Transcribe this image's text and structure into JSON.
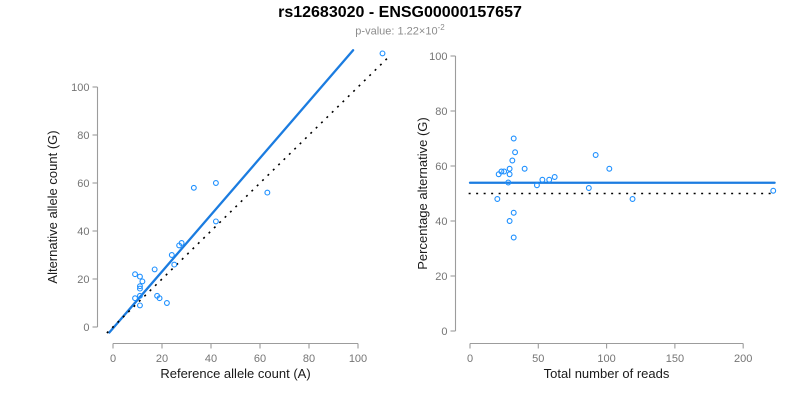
{
  "header": {
    "title": "rs12683020 - ENSG00000157657",
    "subtitle_prefix": "p-value: 1.22×10",
    "subtitle_exponent": "-2"
  },
  "colors": {
    "point_blue": "#1E90FF",
    "line_blue": "#1B7CE0",
    "identity_black": "#000000",
    "axis_gray": "#9c9c9c",
    "tick_label_gray": "#757575",
    "subtitle_gray": "#8c8c8c"
  },
  "chart_data": [
    {
      "id": "allele-counts-scatter",
      "type": "scatter",
      "xlabel": "Reference allele count (A)",
      "ylabel": "Alternative allele count (G)",
      "xticks": [
        0,
        20,
        40,
        60,
        80,
        100
      ],
      "yticks": [
        0,
        20,
        40,
        60,
        80,
        100
      ],
      "xlim": [
        -6,
        114
      ],
      "ylim": [
        -6,
        118
      ],
      "grid": false,
      "points": [
        [
          9,
          12
        ],
        [
          11,
          13
        ],
        [
          11,
          9
        ],
        [
          9,
          22
        ],
        [
          11,
          21
        ],
        [
          12,
          19
        ],
        [
          11,
          17
        ],
        [
          11,
          16
        ],
        [
          17,
          24
        ],
        [
          18,
          13
        ],
        [
          19,
          12
        ],
        [
          22,
          10
        ],
        [
          24,
          30
        ],
        [
          25,
          26
        ],
        [
          27,
          34
        ],
        [
          28,
          35
        ],
        [
          33,
          58
        ],
        [
          42,
          60
        ],
        [
          42,
          44
        ],
        [
          63,
          56
        ],
        [
          110,
          114
        ]
      ],
      "lines": [
        {
          "name": "regression-fit",
          "style": "solid",
          "color_key": "line_blue",
          "from": [
            -1.5,
            -2.3
          ],
          "to": [
            98,
            115.3
          ]
        },
        {
          "name": "identity-y-equals-x",
          "style": "dotted",
          "color_key": "identity_black",
          "from": [
            -2.5,
            -2.5
          ],
          "to": [
            112.5,
            112.5
          ]
        }
      ]
    },
    {
      "id": "percentage-vs-reads-scatter",
      "type": "scatter",
      "xlabel": "Total number of reads",
      "ylabel": "Percentage alternative (G)",
      "xticks": [
        0,
        50,
        100,
        150,
        200
      ],
      "yticks": [
        0,
        20,
        40,
        60,
        80,
        100
      ],
      "xlim": [
        -11,
        231
      ],
      "ylim": [
        0,
        100
      ],
      "grid": false,
      "points": [
        [
          20,
          48
        ],
        [
          21,
          57
        ],
        [
          23,
          58
        ],
        [
          25,
          58
        ],
        [
          28,
          54
        ],
        [
          29,
          57
        ],
        [
          29,
          59
        ],
        [
          31,
          62
        ],
        [
          33,
          65
        ],
        [
          32,
          70
        ],
        [
          40,
          59
        ],
        [
          49,
          53
        ],
        [
          53,
          55
        ],
        [
          58,
          55
        ],
        [
          62,
          56
        ],
        [
          87,
          52
        ],
        [
          92,
          64
        ],
        [
          102,
          59
        ],
        [
          119,
          48
        ],
        [
          29,
          40
        ],
        [
          32,
          43
        ],
        [
          32,
          34
        ],
        [
          222,
          51
        ]
      ],
      "lines": [
        {
          "name": "mean-percentage",
          "style": "solid",
          "color_key": "line_blue",
          "from": [
            0,
            53.9
          ],
          "to": [
            223,
            53.9
          ]
        },
        {
          "name": "fifty-percent-reference",
          "style": "dotted",
          "color_key": "identity_black",
          "from": [
            -1,
            50
          ],
          "to": [
            223,
            50
          ]
        }
      ]
    }
  ]
}
